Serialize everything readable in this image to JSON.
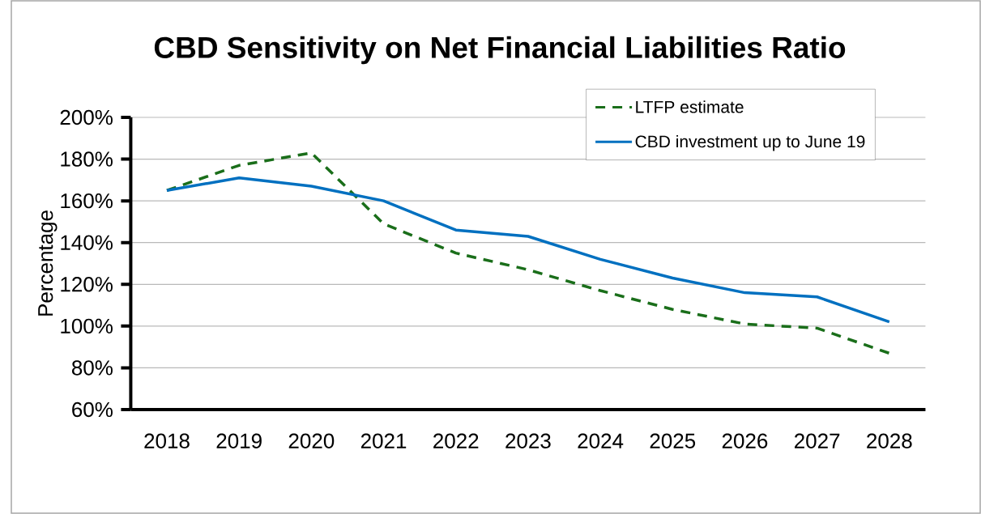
{
  "chart_data": {
    "type": "line",
    "title": "CBD Sensitivity on Net Financial Liabilities Ratio",
    "ylabel": "Percentage",
    "categories": [
      "2018",
      "2019",
      "2020",
      "2021",
      "2022",
      "2023",
      "2024",
      "2025",
      "2026",
      "2027",
      "2028"
    ],
    "series": [
      {
        "name": "LTFP estimate",
        "color": "#1a6e1a",
        "line_style": "dashed",
        "values": [
          165,
          177,
          183,
          149,
          135,
          127,
          117,
          108,
          101,
          99,
          87
        ]
      },
      {
        "name": "CBD investment up to June 19",
        "color": "#0070c0",
        "line_style": "solid",
        "values": [
          165,
          171,
          167,
          160,
          146,
          143,
          132,
          123,
          116,
          114,
          102
        ]
      }
    ],
    "ylim": [
      60,
      200
    ],
    "yticks": [
      {
        "value": 60,
        "label": "60%"
      },
      {
        "value": 80,
        "label": "80%"
      },
      {
        "value": 100,
        "label": "100%"
      },
      {
        "value": 120,
        "label": "120%"
      },
      {
        "value": 140,
        "label": "140%"
      },
      {
        "value": 160,
        "label": "160%"
      },
      {
        "value": 180,
        "label": "180%"
      },
      {
        "value": 200,
        "label": "200%"
      }
    ],
    "grid": "y",
    "legend": "top right",
    "marker": "none"
  }
}
